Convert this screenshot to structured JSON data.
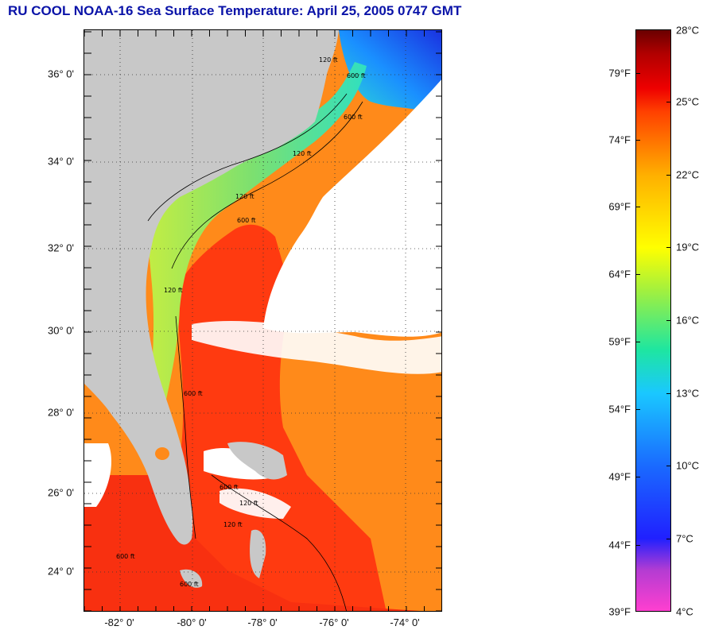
{
  "title": "RU COOL  NOAA-16  Sea Surface Temperature:  April 25, 2005 0747 GMT",
  "map": {
    "latitude_labels": [
      "36° 0'",
      "34° 0'",
      "32° 0'",
      "30° 0'",
      "28° 0'",
      "26° 0'",
      "24° 0'"
    ],
    "longitude_labels": [
      "-82° 0'",
      "-80° 0'",
      "-78° 0'",
      "-76° 0'",
      "-74° 0'"
    ],
    "latitude_range": [
      23.0,
      37.0
    ],
    "longitude_range": [
      -83.0,
      -73.0
    ],
    "isobath_labels": [
      "120 ft",
      "600 ft",
      "120 ft",
      "600 ft",
      "120 ft",
      "600 ft",
      "120 ft",
      "600 ft",
      "600 ft",
      "120 ft",
      "600 ft",
      "120 ft",
      "600 ft"
    ],
    "colors": {
      "land": "#c8c8c8",
      "cloud": "#ffffff",
      "gulf_stream": "#ff3a10",
      "warm_offshore": "#ff8a1a",
      "shelf_cool": "#b4e650",
      "north_cold": "#1a40ff"
    }
  },
  "colorbar": {
    "fahrenheit_labels": [
      "79°F",
      "74°F",
      "69°F",
      "64°F",
      "59°F",
      "54°F",
      "49°F",
      "44°F",
      "39°F"
    ],
    "celsius_labels": [
      "28°C",
      "25°C",
      "22°C",
      "19°C",
      "16°C",
      "13°C",
      "10°C",
      "7°C",
      "4°C"
    ],
    "range_celsius": [
      4,
      28
    ]
  }
}
